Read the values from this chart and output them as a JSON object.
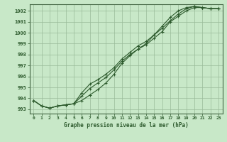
{
  "xlabel": "Graphe pression niveau de la mer (hPa)",
  "background_color": "#c8e8c8",
  "grid_color": "#99bb99",
  "line_color": "#2d5a2d",
  "spine_color": "#446644",
  "ylim": [
    992.6,
    1002.6
  ],
  "xlim": [
    -0.5,
    23.5
  ],
  "yticks": [
    993,
    994,
    995,
    996,
    997,
    998,
    999,
    1000,
    1001,
    1002
  ],
  "xticks": [
    0,
    1,
    2,
    3,
    4,
    5,
    6,
    7,
    8,
    9,
    10,
    11,
    12,
    13,
    14,
    15,
    16,
    17,
    18,
    19,
    20,
    21,
    22,
    23
  ],
  "series1": [
    993.8,
    993.3,
    993.1,
    993.3,
    993.4,
    993.5,
    994.5,
    995.3,
    995.7,
    996.2,
    996.8,
    997.6,
    998.2,
    998.8,
    999.2,
    999.8,
    1000.4,
    1001.1,
    1001.7,
    1002.2,
    1002.4,
    1002.3,
    1002.2,
    1002.2
  ],
  "series2": [
    993.8,
    993.3,
    993.1,
    993.3,
    993.4,
    993.5,
    994.2,
    994.9,
    995.4,
    995.9,
    996.6,
    997.4,
    998.0,
    998.5,
    998.9,
    999.5,
    1000.1,
    1001.0,
    1001.5,
    1002.0,
    1002.3,
    1002.3,
    1002.2,
    1002.2
  ],
  "series3": [
    993.8,
    993.3,
    993.1,
    993.3,
    993.4,
    993.5,
    993.8,
    994.3,
    994.8,
    995.4,
    996.2,
    997.2,
    997.9,
    998.5,
    999.0,
    999.8,
    1000.6,
    1001.4,
    1002.0,
    1002.3,
    1002.4,
    1002.3,
    1002.2,
    1002.2
  ]
}
